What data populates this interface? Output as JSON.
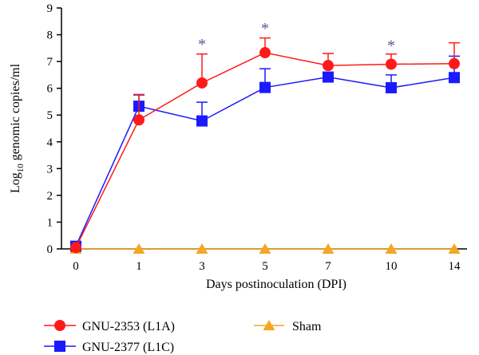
{
  "chart_data": {
    "type": "line",
    "xlabel": "Days postinoculation (DPI)",
    "ylabel_main": "Log",
    "ylabel_sub": "10",
    "ylabel_rest": " genomic copies/ml",
    "categories": [
      "0",
      "1",
      "3",
      "5",
      "7",
      "10",
      "14"
    ],
    "ylim": [
      0,
      9
    ],
    "yticks": [
      0,
      1,
      2,
      3,
      4,
      5,
      6,
      7,
      8,
      9
    ],
    "grid": false,
    "legend_position": "bottom",
    "series": [
      {
        "name": "GNU-2353 (L1A)",
        "marker": "circle",
        "color": "#ff1a1a",
        "values": [
          0.05,
          4.82,
          6.2,
          7.33,
          6.85,
          6.9,
          6.92
        ],
        "errors": [
          0,
          0.95,
          1.08,
          0.55,
          0.45,
          0.38,
          0.78
        ]
      },
      {
        "name": "GNU-2377 (L1C)",
        "marker": "square",
        "color": "#1a1aff",
        "values": [
          0.1,
          5.33,
          4.78,
          6.03,
          6.42,
          6.02,
          6.4
        ],
        "errors": [
          0,
          0.42,
          0.7,
          0.7,
          0,
          0.48,
          0.8
        ]
      },
      {
        "name": "Sham",
        "marker": "triangle",
        "color": "#f5a623",
        "values": [
          0,
          0,
          0,
          0,
          0,
          0,
          0
        ],
        "errors": [
          0,
          0,
          0,
          0,
          0,
          0,
          0
        ]
      }
    ],
    "annotations": [
      {
        "category_index": 2,
        "text": "*",
        "y": 7.75
      },
      {
        "category_index": 3,
        "text": "*",
        "y": 8.35
      },
      {
        "category_index": 5,
        "text": "*",
        "y": 7.7
      }
    ],
    "annotation_color": "#6a4c9c"
  }
}
